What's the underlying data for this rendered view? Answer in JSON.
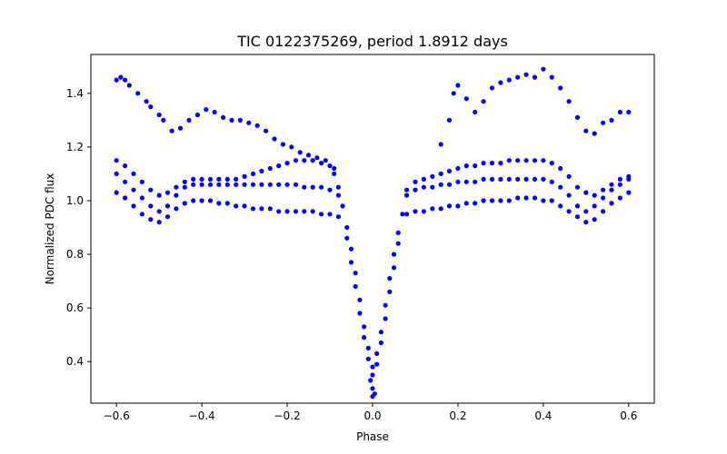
{
  "chart_data": {
    "type": "scatter",
    "title": "TIC 0122375269, period 1.8912 days",
    "xlabel": "Phase",
    "ylabel": "Normalized PDC flux",
    "xlim": [
      -0.66,
      0.66
    ],
    "ylim": [
      0.245,
      1.545
    ],
    "xticks": [
      -0.6,
      -0.4,
      -0.2,
      0.0,
      0.2,
      0.4,
      0.6
    ],
    "xtick_labels": [
      "−0.6",
      "−0.4",
      "−0.2",
      "0.0",
      "0.2",
      "0.4",
      "0.6"
    ],
    "yticks": [
      0.4,
      0.6,
      0.8,
      1.0,
      1.2,
      1.4
    ],
    "ytick_labels": [
      "0.4",
      "0.6",
      "0.8",
      "1.0",
      "1.2",
      "1.4"
    ],
    "grid": false,
    "legend": "none",
    "marker_color": "#0000ff",
    "series": [
      {
        "values": [
          [
            -0.6,
            1.45
          ],
          [
            -0.59,
            1.46
          ],
          [
            -0.58,
            1.45
          ],
          [
            -0.57,
            1.43
          ],
          [
            -0.55,
            1.4
          ],
          [
            -0.53,
            1.37
          ],
          [
            -0.52,
            1.35
          ],
          [
            -0.5,
            1.32
          ],
          [
            -0.49,
            1.3
          ],
          [
            -0.47,
            1.26
          ],
          [
            -0.45,
            1.27
          ],
          [
            -0.43,
            1.3
          ],
          [
            -0.41,
            1.32
          ],
          [
            -0.39,
            1.34
          ],
          [
            -0.37,
            1.33
          ],
          [
            -0.35,
            1.31
          ],
          [
            -0.33,
            1.3
          ],
          [
            -0.31,
            1.3
          ],
          [
            -0.29,
            1.29
          ],
          [
            -0.27,
            1.28
          ],
          [
            -0.25,
            1.26
          ],
          [
            -0.23,
            1.23
          ],
          [
            -0.21,
            1.21
          ],
          [
            -0.19,
            1.2
          ],
          [
            -0.17,
            1.18
          ],
          [
            -0.15,
            1.17
          ],
          [
            -0.13,
            1.16
          ],
          [
            -0.11,
            1.15
          ],
          [
            -0.09,
            1.12
          ],
          [
            0.16,
            1.21
          ],
          [
            0.18,
            1.3
          ],
          [
            0.19,
            1.4
          ],
          [
            0.2,
            1.43
          ],
          [
            0.22,
            1.38
          ],
          [
            0.24,
            1.33
          ],
          [
            0.26,
            1.37
          ],
          [
            0.28,
            1.42
          ],
          [
            0.3,
            1.44
          ],
          [
            0.32,
            1.45
          ],
          [
            0.34,
            1.46
          ],
          [
            0.36,
            1.47
          ],
          [
            0.38,
            1.46
          ],
          [
            0.4,
            1.49
          ],
          [
            0.42,
            1.46
          ],
          [
            0.44,
            1.42
          ],
          [
            0.46,
            1.37
          ],
          [
            0.48,
            1.31
          ],
          [
            0.5,
            1.26
          ],
          [
            0.52,
            1.25
          ],
          [
            0.54,
            1.29
          ],
          [
            0.56,
            1.3
          ],
          [
            0.58,
            1.33
          ],
          [
            0.6,
            1.33
          ],
          [
            -0.6,
            1.15
          ],
          [
            -0.58,
            1.13
          ],
          [
            -0.56,
            1.1
          ],
          [
            -0.54,
            1.07
          ],
          [
            -0.52,
            1.04
          ],
          [
            -0.5,
            1.02
          ],
          [
            -0.48,
            1.03
          ],
          [
            -0.46,
            1.05
          ],
          [
            -0.44,
            1.07
          ],
          [
            -0.42,
            1.08
          ],
          [
            -0.4,
            1.08
          ],
          [
            -0.38,
            1.08
          ],
          [
            -0.36,
            1.08
          ],
          [
            -0.34,
            1.08
          ],
          [
            -0.32,
            1.08
          ],
          [
            -0.3,
            1.09
          ],
          [
            -0.28,
            1.1
          ],
          [
            -0.26,
            1.11
          ],
          [
            -0.24,
            1.12
          ],
          [
            -0.22,
            1.13
          ],
          [
            -0.2,
            1.14
          ],
          [
            -0.18,
            1.15
          ],
          [
            -0.16,
            1.15
          ],
          [
            -0.14,
            1.15
          ],
          [
            -0.12,
            1.14
          ],
          [
            -0.1,
            1.13
          ],
          [
            -0.09,
            1.1
          ],
          [
            -0.08,
            1.05
          ],
          [
            0.08,
            1.04
          ],
          [
            0.1,
            1.07
          ],
          [
            0.12,
            1.08
          ],
          [
            0.14,
            1.09
          ],
          [
            0.16,
            1.1
          ],
          [
            0.18,
            1.11
          ],
          [
            0.2,
            1.12
          ],
          [
            0.22,
            1.13
          ],
          [
            0.24,
            1.13
          ],
          [
            0.26,
            1.14
          ],
          [
            0.28,
            1.14
          ],
          [
            0.3,
            1.14
          ],
          [
            0.32,
            1.15
          ],
          [
            0.34,
            1.15
          ],
          [
            0.36,
            1.15
          ],
          [
            0.38,
            1.15
          ],
          [
            0.4,
            1.15
          ],
          [
            0.42,
            1.14
          ],
          [
            0.44,
            1.12
          ],
          [
            0.46,
            1.09
          ],
          [
            0.48,
            1.05
          ],
          [
            0.5,
            1.03
          ],
          [
            0.52,
            1.02
          ],
          [
            0.54,
            1.04
          ],
          [
            0.56,
            1.06
          ],
          [
            0.58,
            1.08
          ],
          [
            0.6,
            1.09
          ],
          [
            -0.6,
            1.1
          ],
          [
            -0.58,
            1.07
          ],
          [
            -0.56,
            1.04
          ],
          [
            -0.54,
            1.01
          ],
          [
            -0.52,
            0.98
          ],
          [
            -0.5,
            0.96
          ],
          [
            -0.48,
            0.98
          ],
          [
            -0.46,
            1.02
          ],
          [
            -0.44,
            1.05
          ],
          [
            -0.42,
            1.06
          ],
          [
            -0.4,
            1.06
          ],
          [
            -0.38,
            1.06
          ],
          [
            -0.36,
            1.06
          ],
          [
            -0.34,
            1.06
          ],
          [
            -0.32,
            1.06
          ],
          [
            -0.3,
            1.06
          ],
          [
            -0.28,
            1.06
          ],
          [
            -0.26,
            1.06
          ],
          [
            -0.24,
            1.06
          ],
          [
            -0.22,
            1.06
          ],
          [
            -0.2,
            1.06
          ],
          [
            -0.18,
            1.06
          ],
          [
            -0.16,
            1.05
          ],
          [
            -0.14,
            1.05
          ],
          [
            -0.12,
            1.05
          ],
          [
            -0.1,
            1.04
          ],
          [
            -0.08,
            1.02
          ],
          [
            0.08,
            1.02
          ],
          [
            0.1,
            1.04
          ],
          [
            0.12,
            1.05
          ],
          [
            0.14,
            1.05
          ],
          [
            0.16,
            1.06
          ],
          [
            0.18,
            1.06
          ],
          [
            0.2,
            1.07
          ],
          [
            0.22,
            1.07
          ],
          [
            0.24,
            1.07
          ],
          [
            0.26,
            1.08
          ],
          [
            0.28,
            1.08
          ],
          [
            0.3,
            1.08
          ],
          [
            0.32,
            1.08
          ],
          [
            0.34,
            1.08
          ],
          [
            0.36,
            1.08
          ],
          [
            0.38,
            1.08
          ],
          [
            0.4,
            1.08
          ],
          [
            0.42,
            1.07
          ],
          [
            0.44,
            1.05
          ],
          [
            0.46,
            1.02
          ],
          [
            0.48,
            0.98
          ],
          [
            0.5,
            0.96
          ],
          [
            0.52,
            0.98
          ],
          [
            0.54,
            1.01
          ],
          [
            0.56,
            1.04
          ],
          [
            0.58,
            1.06
          ],
          [
            0.6,
            1.08
          ],
          [
            -0.6,
            1.03
          ],
          [
            -0.58,
            1.01
          ],
          [
            -0.56,
            0.98
          ],
          [
            -0.54,
            0.95
          ],
          [
            -0.52,
            0.93
          ],
          [
            -0.5,
            0.92
          ],
          [
            -0.48,
            0.94
          ],
          [
            -0.46,
            0.97
          ],
          [
            -0.44,
            0.99
          ],
          [
            -0.42,
            1.0
          ],
          [
            -0.4,
            1.0
          ],
          [
            -0.38,
            1.0
          ],
          [
            -0.36,
            0.99
          ],
          [
            -0.34,
            0.99
          ],
          [
            -0.32,
            0.98
          ],
          [
            -0.3,
            0.98
          ],
          [
            -0.28,
            0.97
          ],
          [
            -0.26,
            0.97
          ],
          [
            -0.24,
            0.97
          ],
          [
            -0.22,
            0.96
          ],
          [
            -0.2,
            0.96
          ],
          [
            -0.18,
            0.96
          ],
          [
            -0.16,
            0.96
          ],
          [
            -0.14,
            0.96
          ],
          [
            -0.12,
            0.95
          ],
          [
            -0.1,
            0.95
          ],
          [
            -0.08,
            0.94
          ],
          [
            0.08,
            0.95
          ],
          [
            0.1,
            0.96
          ],
          [
            0.12,
            0.96
          ],
          [
            0.14,
            0.97
          ],
          [
            0.16,
            0.97
          ],
          [
            0.18,
            0.98
          ],
          [
            0.2,
            0.98
          ],
          [
            0.22,
            0.99
          ],
          [
            0.24,
            0.99
          ],
          [
            0.26,
            1.0
          ],
          [
            0.28,
            1.0
          ],
          [
            0.3,
            1.0
          ],
          [
            0.32,
            1.0
          ],
          [
            0.34,
            1.01
          ],
          [
            0.36,
            1.01
          ],
          [
            0.38,
            1.01
          ],
          [
            0.4,
            1.0
          ],
          [
            0.42,
            1.0
          ],
          [
            0.44,
            0.98
          ],
          [
            0.46,
            0.96
          ],
          [
            0.48,
            0.94
          ],
          [
            0.5,
            0.92
          ],
          [
            0.52,
            0.93
          ],
          [
            0.54,
            0.96
          ],
          [
            0.56,
            0.99
          ],
          [
            0.58,
            1.01
          ],
          [
            0.6,
            1.03
          ],
          [
            -0.07,
            0.98
          ],
          [
            -0.06,
            0.9
          ],
          [
            -0.05,
            0.82
          ],
          [
            -0.04,
            0.73
          ],
          [
            -0.03,
            0.63
          ],
          [
            -0.02,
            0.53
          ],
          [
            -0.01,
            0.45
          ],
          [
            0.0,
            0.38
          ],
          [
            0.01,
            0.43
          ],
          [
            0.02,
            0.51
          ],
          [
            0.03,
            0.61
          ],
          [
            0.04,
            0.71
          ],
          [
            0.05,
            0.8
          ],
          [
            0.06,
            0.88
          ],
          [
            0.07,
            0.95
          ],
          [
            -0.06,
            0.86
          ],
          [
            -0.05,
            0.77
          ],
          [
            -0.04,
            0.68
          ],
          [
            -0.03,
            0.58
          ],
          [
            -0.02,
            0.49
          ],
          [
            -0.01,
            0.41
          ],
          [
            0.0,
            0.35
          ],
          [
            0.01,
            0.39
          ],
          [
            0.02,
            0.47
          ],
          [
            0.03,
            0.56
          ],
          [
            0.04,
            0.66
          ],
          [
            0.05,
            0.75
          ],
          [
            0.06,
            0.84
          ],
          [
            0.0,
            0.3
          ],
          [
            -0.005,
            0.33
          ],
          [
            0.005,
            0.28
          ],
          [
            0.0,
            0.27
          ]
        ]
      }
    ]
  }
}
